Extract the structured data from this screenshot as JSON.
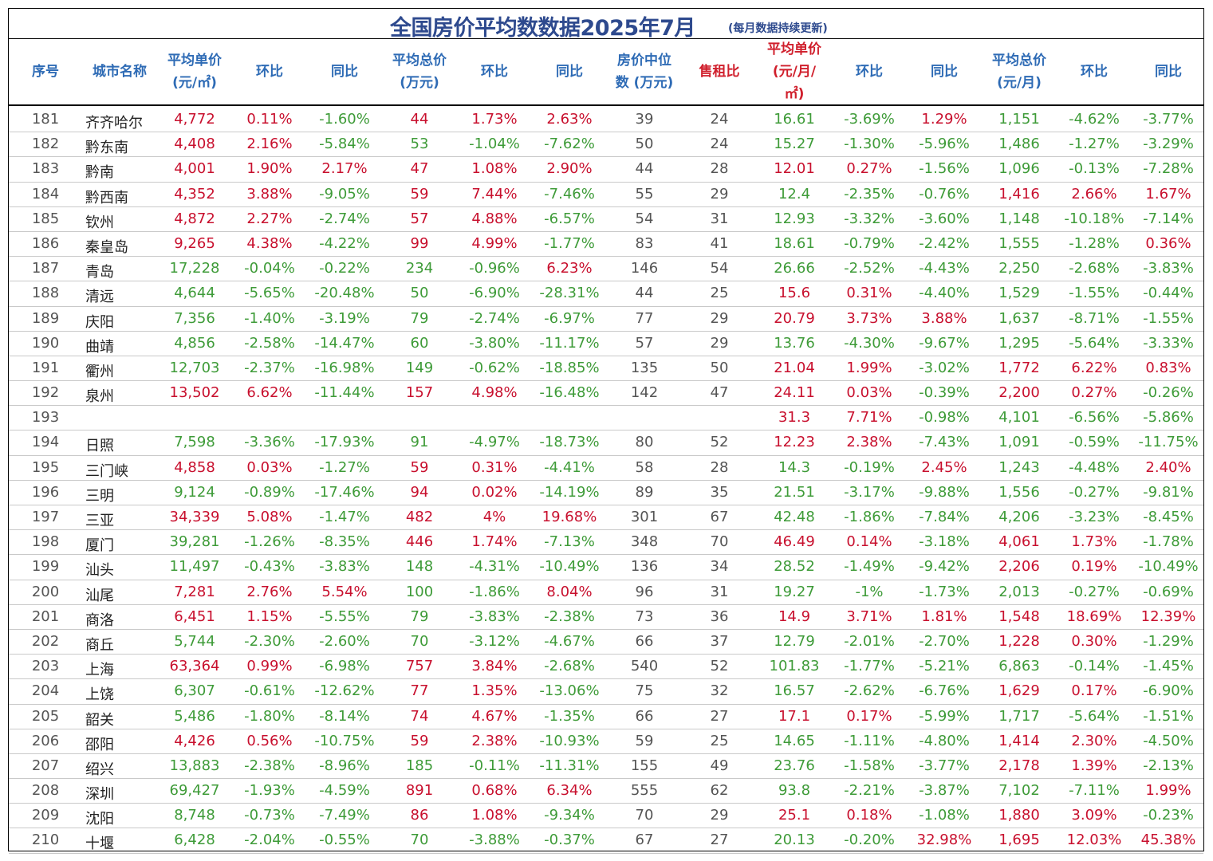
{
  "title": "全国房价平均数数据2025年7月",
  "note": "(每月数据持续更新)",
  "headers": {
    "idx": "序号",
    "city": "城市名称",
    "unit_price_1": "平均单价",
    "unit_price_2": "(元/㎡)",
    "mom1": "环比",
    "yoy1": "同比",
    "total_1": "平均总价",
    "total_2": "(万元)",
    "mom2": "环比",
    "yoy2": "同比",
    "median_1": "房价中位",
    "median_2": "数 (万元)",
    "ratio": "售租比",
    "rent_1": "平均单价",
    "rent_2": "(元/月/",
    "rent_3": "㎡)",
    "mom3": "环比",
    "yoy3": "同比",
    "rent_total_1": "平均总价",
    "rent_total_2": "(元/月)",
    "mom4": "环比",
    "yoy4": "同比"
  },
  "rows": [
    [
      "181",
      "齐齐哈尔",
      "4,772",
      "0.11%",
      "-1.60%",
      "44",
      "1.73%",
      "2.63%",
      "39",
      "24",
      "16.61",
      "-3.69%",
      "1.29%",
      "1,151",
      "-4.62%",
      "-3.77%"
    ],
    [
      "182",
      "黔东南",
      "4,408",
      "2.16%",
      "-5.84%",
      "53",
      "-1.04%",
      "-7.62%",
      "50",
      "24",
      "15.27",
      "-1.30%",
      "-5.96%",
      "1,486",
      "-1.27%",
      "-3.29%"
    ],
    [
      "183",
      "黔南",
      "4,001",
      "1.90%",
      "2.17%",
      "47",
      "1.08%",
      "2.90%",
      "44",
      "28",
      "12.01",
      "0.27%",
      "-1.56%",
      "1,096",
      "-0.13%",
      "-7.28%"
    ],
    [
      "184",
      "黔西南",
      "4,352",
      "3.88%",
      "-9.05%",
      "59",
      "7.44%",
      "-7.46%",
      "55",
      "29",
      "12.4",
      "-2.35%",
      "-0.76%",
      "1,416",
      "2.66%",
      "1.67%"
    ],
    [
      "185",
      "钦州",
      "4,872",
      "2.27%",
      "-2.74%",
      "57",
      "4.88%",
      "-6.57%",
      "54",
      "31",
      "12.93",
      "-3.32%",
      "-3.60%",
      "1,148",
      "-10.18%",
      "-7.14%"
    ],
    [
      "186",
      "秦皇岛",
      "9,265",
      "4.38%",
      "-4.22%",
      "99",
      "4.99%",
      "-1.77%",
      "83",
      "41",
      "18.61",
      "-0.79%",
      "-2.42%",
      "1,555",
      "-1.28%",
      "0.36%"
    ],
    [
      "187",
      "青岛",
      "17,228",
      "-0.04%",
      "-0.22%",
      "234",
      "-0.96%",
      "6.23%",
      "146",
      "54",
      "26.66",
      "-2.52%",
      "-4.43%",
      "2,250",
      "-2.68%",
      "-3.83%"
    ],
    [
      "188",
      "清远",
      "4,644",
      "-5.65%",
      "-20.48%",
      "50",
      "-6.90%",
      "-28.31%",
      "44",
      "25",
      "15.6",
      "0.31%",
      "-4.40%",
      "1,529",
      "-1.55%",
      "-0.44%"
    ],
    [
      "189",
      "庆阳",
      "7,356",
      "-1.40%",
      "-3.19%",
      "79",
      "-2.74%",
      "-6.97%",
      "77",
      "29",
      "20.79",
      "3.73%",
      "3.88%",
      "1,637",
      "-8.71%",
      "-1.55%"
    ],
    [
      "190",
      "曲靖",
      "4,856",
      "-2.58%",
      "-14.47%",
      "60",
      "-3.80%",
      "-11.17%",
      "57",
      "29",
      "13.76",
      "-4.30%",
      "-9.67%",
      "1,295",
      "-5.64%",
      "-3.33%"
    ],
    [
      "191",
      "衢州",
      "12,703",
      "-2.37%",
      "-16.98%",
      "149",
      "-0.62%",
      "-18.85%",
      "135",
      "50",
      "21.04",
      "1.99%",
      "-3.02%",
      "1,772",
      "6.22%",
      "0.83%"
    ],
    [
      "192",
      "泉州",
      "13,502",
      "6.62%",
      "-11.44%",
      "157",
      "4.98%",
      "-16.48%",
      "142",
      "47",
      "24.11",
      "0.03%",
      "-0.39%",
      "2,200",
      "0.27%",
      "-0.26%"
    ],
    [
      "193",
      "",
      "",
      "",
      "",
      "",
      "",
      "",
      "",
      "",
      "31.3",
      "7.71%",
      "-0.98%",
      "4,101",
      "-6.56%",
      "-5.86%"
    ],
    [
      "194",
      "日照",
      "7,598",
      "-3.36%",
      "-17.93%",
      "91",
      "-4.97%",
      "-18.73%",
      "80",
      "52",
      "12.23",
      "2.38%",
      "-7.43%",
      "1,091",
      "-0.59%",
      "-11.75%"
    ],
    [
      "195",
      "三门峡",
      "4,858",
      "0.03%",
      "-1.27%",
      "59",
      "0.31%",
      "-4.41%",
      "58",
      "28",
      "14.3",
      "-0.19%",
      "2.45%",
      "1,243",
      "-4.48%",
      "2.40%"
    ],
    [
      "196",
      "三明",
      "9,124",
      "-0.89%",
      "-17.46%",
      "94",
      "0.02%",
      "-14.19%",
      "89",
      "35",
      "21.51",
      "-3.17%",
      "-9.88%",
      "1,556",
      "-0.27%",
      "-9.81%"
    ],
    [
      "197",
      "三亚",
      "34,339",
      "5.08%",
      "-1.47%",
      "482",
      "4%",
      "19.68%",
      "301",
      "67",
      "42.48",
      "-1.86%",
      "-7.84%",
      "4,206",
      "-3.23%",
      "-8.45%"
    ],
    [
      "198",
      "厦门",
      "39,281",
      "-1.26%",
      "-8.35%",
      "446",
      "1.74%",
      "-7.13%",
      "348",
      "70",
      "46.49",
      "0.14%",
      "-3.18%",
      "4,061",
      "1.73%",
      "-1.78%"
    ],
    [
      "199",
      "汕头",
      "11,497",
      "-0.43%",
      "-3.83%",
      "148",
      "-4.31%",
      "-10.49%",
      "136",
      "34",
      "28.52",
      "-1.49%",
      "-9.42%",
      "2,206",
      "0.19%",
      "-10.49%"
    ],
    [
      "200",
      "汕尾",
      "7,281",
      "2.76%",
      "5.54%",
      "100",
      "-1.86%",
      "8.04%",
      "96",
      "31",
      "19.27",
      "-1%",
      "-1.73%",
      "2,013",
      "-0.27%",
      "-0.69%"
    ],
    [
      "201",
      "商洛",
      "6,451",
      "1.15%",
      "-5.55%",
      "79",
      "-3.83%",
      "-2.38%",
      "73",
      "36",
      "14.9",
      "3.71%",
      "1.81%",
      "1,548",
      "18.69%",
      "12.39%"
    ],
    [
      "202",
      "商丘",
      "5,744",
      "-2.30%",
      "-2.60%",
      "70",
      "-3.12%",
      "-4.67%",
      "66",
      "37",
      "12.79",
      "-2.01%",
      "-2.70%",
      "1,228",
      "0.30%",
      "-1.29%"
    ],
    [
      "203",
      "上海",
      "63,364",
      "0.99%",
      "-6.98%",
      "757",
      "3.84%",
      "-2.68%",
      "540",
      "52",
      "101.83",
      "-1.77%",
      "-5.21%",
      "6,863",
      "-0.14%",
      "-1.45%"
    ],
    [
      "204",
      "上饶",
      "6,307",
      "-0.61%",
      "-12.62%",
      "77",
      "1.35%",
      "-13.06%",
      "75",
      "32",
      "16.57",
      "-2.62%",
      "-6.76%",
      "1,629",
      "0.17%",
      "-6.90%"
    ],
    [
      "205",
      "韶关",
      "5,486",
      "-1.80%",
      "-8.14%",
      "74",
      "4.67%",
      "-1.35%",
      "66",
      "27",
      "17.1",
      "0.17%",
      "-5.99%",
      "1,717",
      "-5.64%",
      "-1.51%"
    ],
    [
      "206",
      "邵阳",
      "4,426",
      "0.56%",
      "-10.75%",
      "59",
      "2.38%",
      "-10.93%",
      "59",
      "25",
      "14.65",
      "-1.11%",
      "-4.80%",
      "1,414",
      "2.30%",
      "-4.50%"
    ],
    [
      "207",
      "绍兴",
      "13,883",
      "-2.38%",
      "-8.96%",
      "185",
      "-0.11%",
      "-11.31%",
      "155",
      "49",
      "23.76",
      "-1.58%",
      "-3.77%",
      "2,178",
      "1.39%",
      "-2.13%"
    ],
    [
      "208",
      "深圳",
      "69,427",
      "-1.93%",
      "-4.59%",
      "891",
      "0.68%",
      "6.34%",
      "555",
      "62",
      "93.8",
      "-2.21%",
      "-3.87%",
      "7,102",
      "-7.11%",
      "1.99%"
    ],
    [
      "209",
      "沈阳",
      "8,748",
      "-0.73%",
      "-7.49%",
      "86",
      "1.08%",
      "-9.34%",
      "70",
      "29",
      "25.1",
      "0.18%",
      "-1.08%",
      "1,880",
      "3.09%",
      "-0.23%"
    ],
    [
      "210",
      "十堰",
      "6,428",
      "-2.04%",
      "-0.55%",
      "70",
      "-3.88%",
      "-0.37%",
      "67",
      "27",
      "20.13",
      "-0.20%",
      "32.98%",
      "1,695",
      "12.03%",
      "45.38%"
    ]
  ],
  "colors": {
    "header_blue": "#2E6BB5",
    "header_red": "#D01F2C",
    "positive_red": "#C8102E",
    "negative_green": "#3E9B38"
  }
}
